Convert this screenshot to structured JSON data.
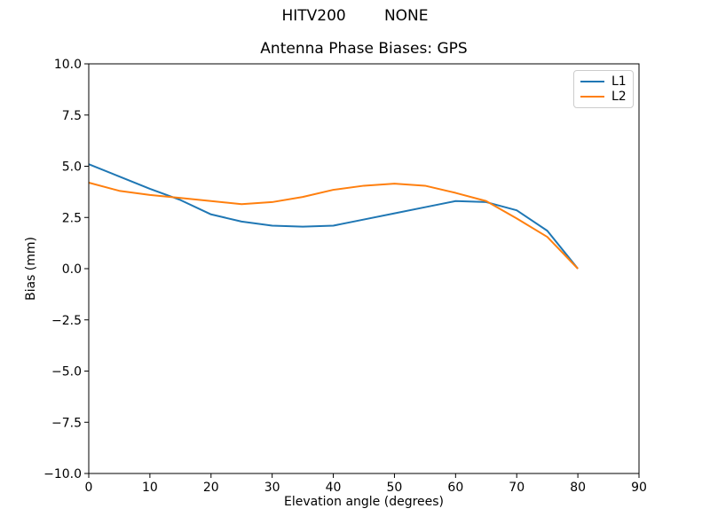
{
  "chart_data": {
    "type": "line",
    "suptitle": "HITV200        NONE",
    "title": "Antenna Phase Biases: GPS",
    "xlabel": "Elevation angle (degrees)",
    "ylabel": "Bias (mm)",
    "xlim": [
      0,
      90
    ],
    "ylim": [
      -10,
      10
    ],
    "grid": false,
    "legend_position": "upper right",
    "x": [
      0,
      5,
      10,
      15,
      20,
      25,
      30,
      35,
      40,
      45,
      50,
      55,
      60,
      65,
      70,
      75,
      80
    ],
    "series": [
      {
        "name": "L1",
        "color": "#1f77b4",
        "values": [
          5.1,
          4.5,
          3.9,
          3.35,
          2.65,
          2.3,
          2.1,
          2.05,
          2.1,
          2.4,
          2.7,
          3.0,
          3.3,
          3.25,
          2.85,
          1.85,
          0.0
        ]
      },
      {
        "name": "L2",
        "color": "#ff7f0e",
        "values": [
          4.2,
          3.8,
          3.6,
          3.45,
          3.3,
          3.15,
          3.25,
          3.5,
          3.85,
          4.05,
          4.15,
          4.05,
          3.7,
          3.3,
          2.45,
          1.55,
          0.0
        ]
      }
    ],
    "xticks": {
      "values": [
        0,
        10,
        20,
        30,
        40,
        50,
        60,
        70,
        80,
        90
      ],
      "labels": [
        "0",
        "10",
        "20",
        "30",
        "40",
        "50",
        "60",
        "70",
        "80",
        "90"
      ]
    },
    "yticks": {
      "values": [
        10,
        7.5,
        5,
        2.5,
        0,
        -2.5,
        -5,
        -7.5,
        -10
      ],
      "labels": [
        "10.0",
        "7.5",
        "5.0",
        "2.5",
        "0.0",
        "−2.5",
        "−5.0",
        "−7.5",
        "−10.0"
      ]
    }
  }
}
